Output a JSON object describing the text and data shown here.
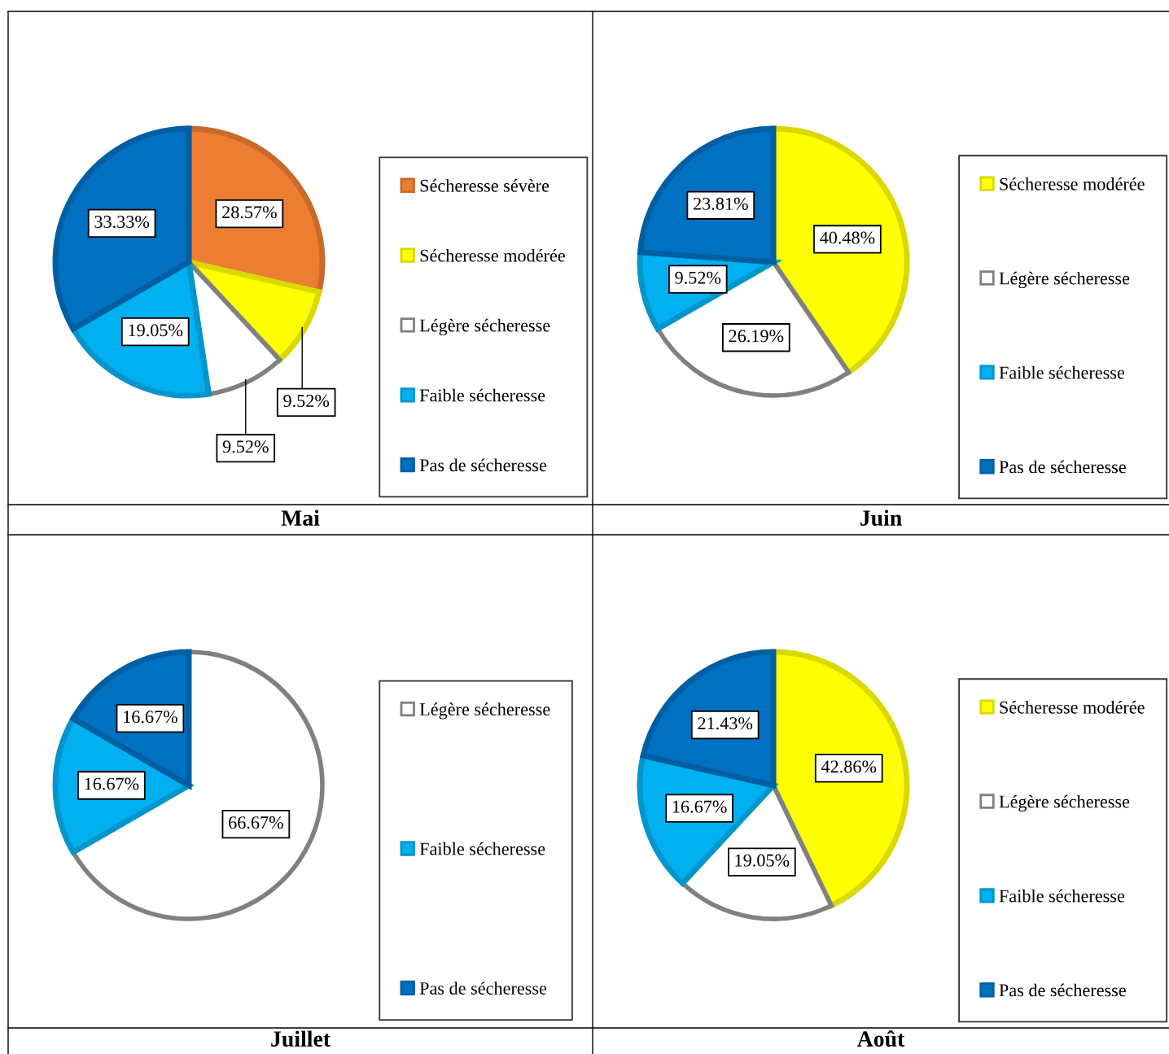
{
  "chart_data": [
    {
      "type": "pie",
      "title": "Mai",
      "categories": [
        "Sécheresse sévère",
        "Sécheresse modérée",
        "Légère sécheresse",
        "Faible sécheresse",
        "Pas de sécheresse"
      ],
      "values": [
        28.57,
        9.52,
        9.52,
        19.05,
        33.33
      ],
      "value_labels": [
        "28.57%",
        "9.52%",
        "9.52%",
        "19.05%",
        "33.33%"
      ],
      "colors": [
        "#ed7d31",
        "#ffff00",
        "#ffffff",
        "#00b0f0",
        "#0070c0"
      ],
      "legend": "right"
    },
    {
      "type": "pie",
      "title": "Juin",
      "categories": [
        "Sécheresse modérée",
        "Légère sécheresse",
        "Faible sécheresse",
        "Pas de sécheresse"
      ],
      "values": [
        40.48,
        26.19,
        9.52,
        23.81
      ],
      "value_labels": [
        "40.48%",
        "26.19%",
        "9.52%",
        "23.81%"
      ],
      "colors": [
        "#ffff00",
        "#ffffff",
        "#00b0f0",
        "#0070c0"
      ],
      "legend": "right"
    },
    {
      "type": "pie",
      "title": "Juillet",
      "categories": [
        "Légère sécheresse",
        "Faible sécheresse",
        "Pas de sécheresse"
      ],
      "values": [
        66.67,
        16.67,
        16.67
      ],
      "value_labels": [
        "66.67%",
        "16.67%",
        "16.67%"
      ],
      "colors": [
        "#ffffff",
        "#00b0f0",
        "#0070c0"
      ],
      "legend": "right"
    },
    {
      "type": "pie",
      "title": "Août",
      "categories": [
        "Sécheresse modérée",
        "Légère sécheresse",
        "Faible sécheresse",
        "Pas de sécheresse"
      ],
      "values": [
        42.86,
        19.05,
        16.67,
        21.43
      ],
      "value_labels": [
        "42.86%",
        "19.05%",
        "16.67%",
        "21.43%"
      ],
      "colors": [
        "#ffff00",
        "#ffffff",
        "#00b0f0",
        "#0070c0"
      ],
      "legend": "right"
    }
  ]
}
